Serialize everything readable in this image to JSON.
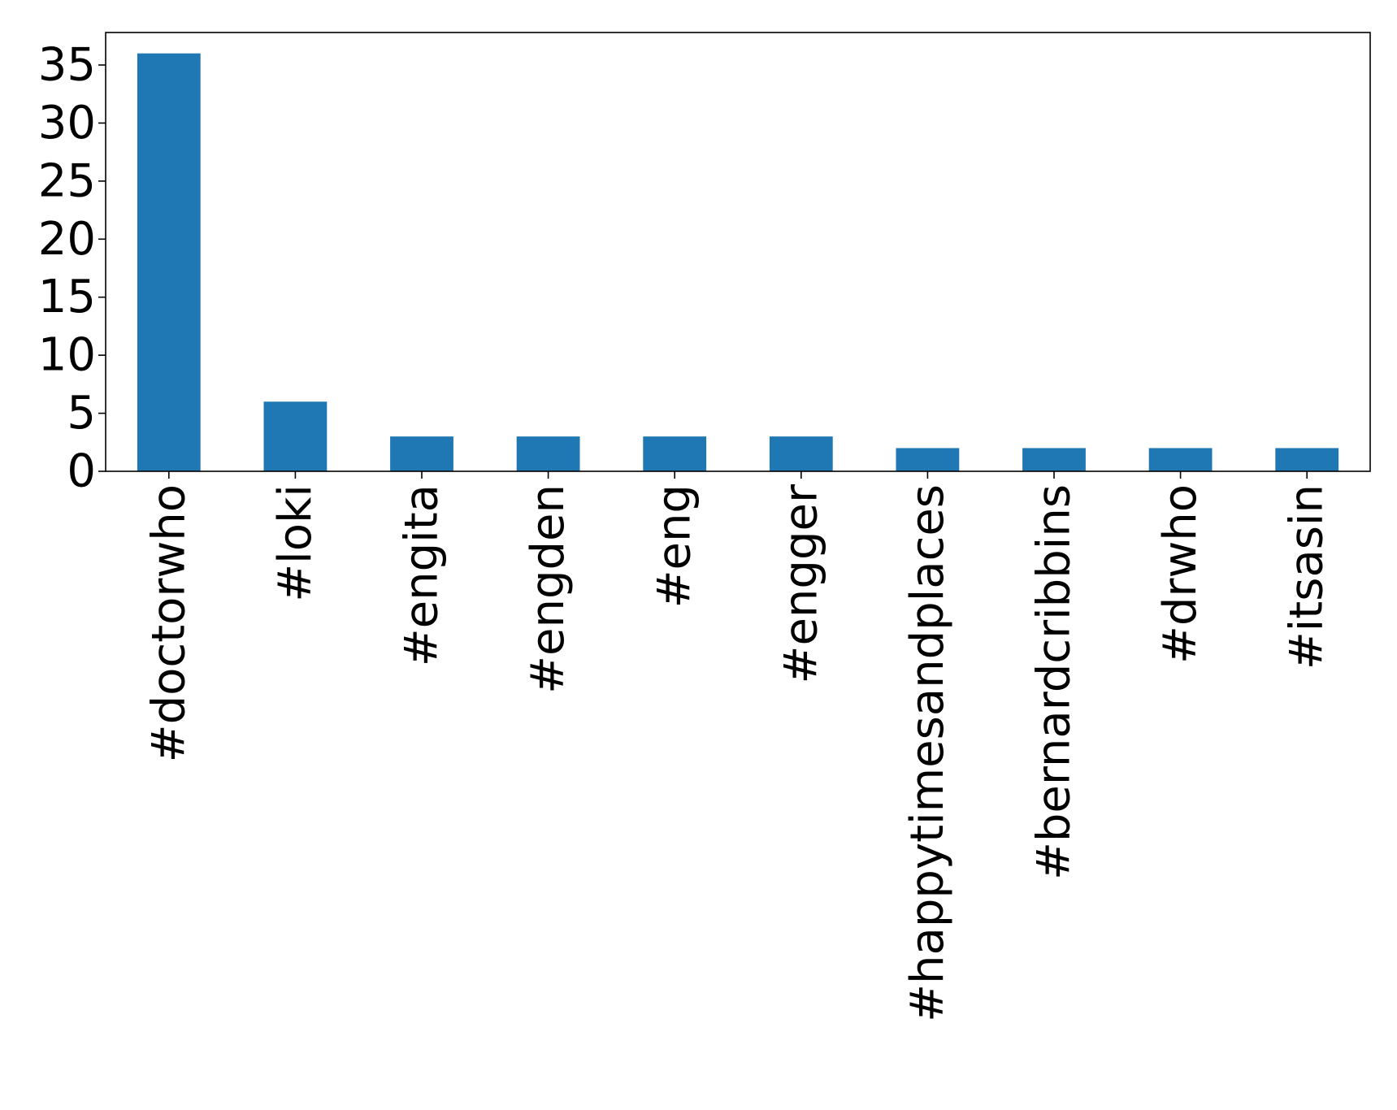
{
  "colors": {
    "bar": "#1f77b4",
    "axis": "#000000",
    "background": "#ffffff"
  },
  "chart_data": {
    "type": "bar",
    "title": "",
    "xlabel": "",
    "ylabel": "",
    "categories": [
      "#doctorwho",
      "#loki",
      "#engita",
      "#engden",
      "#eng",
      "#engger",
      "#happytimesandplaces",
      "#bernardcribbins",
      "#drwho",
      "#itsasin"
    ],
    "values": [
      36,
      6,
      3,
      3,
      3,
      3,
      2,
      2,
      2,
      2
    ],
    "ylim": [
      0,
      37.8
    ],
    "yticks": [
      0,
      5,
      10,
      15,
      20,
      25,
      30,
      35
    ],
    "grid": false,
    "legend": "none"
  }
}
